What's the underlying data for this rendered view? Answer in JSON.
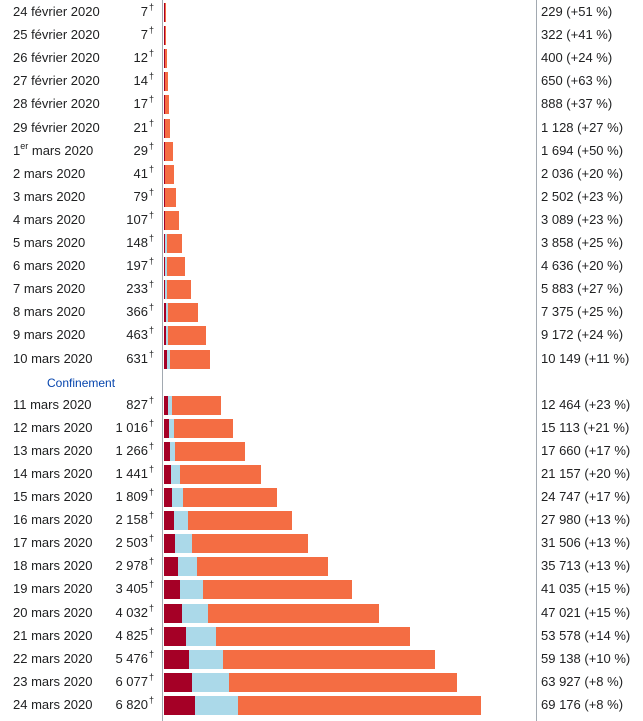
{
  "colors": {
    "deaths": "#a50026",
    "recoveries": "#abd9e9",
    "active": "#f46d43"
  },
  "confinement_label": "Confinement",
  "chart_data": {
    "type": "bar",
    "stacked": true,
    "orientation": "horizontal",
    "series": [
      {
        "key": "deaths",
        "values": [
          7,
          7,
          12,
          14,
          17,
          21,
          29,
          41,
          79,
          107,
          148,
          197,
          233,
          366,
          463,
          631,
          827,
          1016,
          1266,
          1441,
          1809,
          2158,
          2503,
          2978,
          3405,
          4032,
          4825,
          5476,
          6077,
          6820
        ]
      },
      {
        "key": "recoveries",
        "values": [
          0,
          0,
          0,
          0,
          0,
          0,
          0,
          0,
          0,
          0,
          400,
          400,
          400,
          400,
          400,
          600,
          1000,
          1200,
          1200,
          2000,
          2400,
          3000,
          3500,
          4300,
          5000,
          5600,
          6600,
          7300,
          8000,
          9300
        ]
      },
      {
        "key": "active",
        "values": [
          222,
          315,
          388,
          636,
          871,
          1107,
          1665,
          1995,
          2423,
          2982,
          3310,
          4039,
          5250,
          6609,
          8309,
          8918,
          10637,
          12897,
          15194,
          17716,
          20538,
          22822,
          25503,
          28435,
          32630,
          37389,
          42153,
          46362,
          49850,
          53056
        ]
      }
    ],
    "rows": [
      {
        "date": "24 février 2020",
        "deaths_label": "7",
        "cases_label": "229 (+51 %)"
      },
      {
        "date": "25 février 2020",
        "deaths_label": "7",
        "cases_label": "322 (+41 %)"
      },
      {
        "date": "26 février 2020",
        "deaths_label": "12",
        "cases_label": "400 (+24 %)"
      },
      {
        "date": "27 février 2020",
        "deaths_label": "14",
        "cases_label": "650 (+63 %)"
      },
      {
        "date": "28 février 2020",
        "deaths_label": "17",
        "cases_label": "888 (+37 %)"
      },
      {
        "date": "29 février 2020",
        "deaths_label": "21",
        "cases_label": "1 128 (+27 %)"
      },
      {
        "date_prefix": "1",
        "date_sup": "er",
        "date": " mars 2020",
        "deaths_label": "29",
        "cases_label": "1 694 (+50 %)"
      },
      {
        "date": "2 mars 2020",
        "deaths_label": "41",
        "cases_label": "2 036 (+20 %)"
      },
      {
        "date": "3 mars 2020",
        "deaths_label": "79",
        "cases_label": "2 502 (+23 %)"
      },
      {
        "date": "4 mars 2020",
        "deaths_label": "107",
        "cases_label": "3 089 (+23 %)"
      },
      {
        "date": "5 mars 2020",
        "deaths_label": "148",
        "cases_label": "3 858 (+25 %)"
      },
      {
        "date": "6 mars 2020",
        "deaths_label": "197",
        "cases_label": "4 636 (+20 %)"
      },
      {
        "date": "7 mars 2020",
        "deaths_label": "233",
        "cases_label": "5 883 (+27 %)"
      },
      {
        "date": "8 mars 2020",
        "deaths_label": "366",
        "cases_label": "7 375 (+25 %)"
      },
      {
        "date": "9 mars 2020",
        "deaths_label": "463",
        "cases_label": "9 172 (+24 %)"
      },
      {
        "date": "10 mars 2020",
        "deaths_label": "631",
        "cases_label": "10 149 (+11 %)"
      },
      {
        "date": "11 mars 2020",
        "deaths_label": "827",
        "cases_label": "12 464 (+23 %)"
      },
      {
        "date": "12 mars 2020",
        "deaths_label": "1 016",
        "cases_label": "15 113 (+21 %)"
      },
      {
        "date": "13 mars 2020",
        "deaths_label": "1 266",
        "cases_label": "17 660 (+17 %)"
      },
      {
        "date": "14 mars 2020",
        "deaths_label": "1 441",
        "cases_label": "21 157 (+20 %)"
      },
      {
        "date": "15 mars 2020",
        "deaths_label": "1 809",
        "cases_label": "24 747 (+17 %)"
      },
      {
        "date": "16 mars 2020",
        "deaths_label": "2 158",
        "cases_label": "27 980 (+13 %)"
      },
      {
        "date": "17 mars 2020",
        "deaths_label": "2 503",
        "cases_label": "31 506 (+13 %)"
      },
      {
        "date": "18 mars 2020",
        "deaths_label": "2 978",
        "cases_label": "35 713 (+13 %)"
      },
      {
        "date": "19 mars 2020",
        "deaths_label": "3 405",
        "cases_label": "41 035 (+15 %)"
      },
      {
        "date": "20 mars 2020",
        "deaths_label": "4 032",
        "cases_label": "47 021 (+15 %)"
      },
      {
        "date": "21 mars 2020",
        "deaths_label": "4 825",
        "cases_label": "53 578 (+14 %)"
      },
      {
        "date": "22 mars 2020",
        "deaths_label": "5 476",
        "cases_label": "59 138 (+10 %)"
      },
      {
        "date": "23 mars 2020",
        "deaths_label": "6 077",
        "cases_label": "63 927 (+8 %)"
      },
      {
        "date": "24 mars 2020",
        "deaths_label": "6 820",
        "cases_label": "69 176 (+8 %)"
      }
    ],
    "dagger": "†",
    "annotation_after_row": 15
  }
}
